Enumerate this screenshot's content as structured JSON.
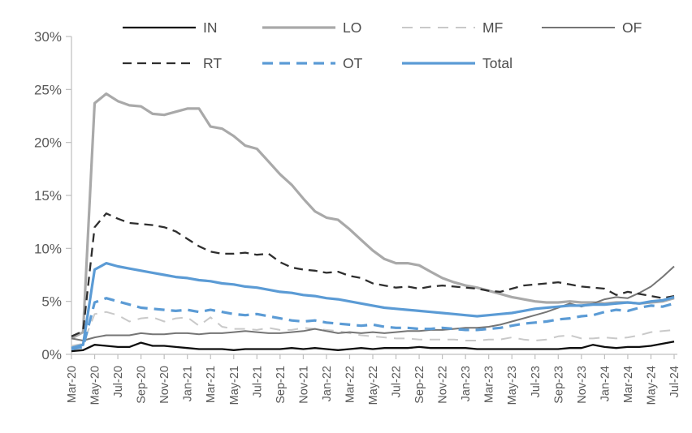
{
  "chart_data": {
    "type": "line",
    "title": "",
    "xlabel": "",
    "ylabel": "",
    "y_axis": {
      "min": 0,
      "max": 30,
      "step": 5,
      "tick_labels": [
        "0%",
        "5%",
        "10%",
        "15%",
        "20%",
        "25%",
        "30%"
      ],
      "format": "percent"
    },
    "x_axis": {
      "tick_every_months": 2,
      "categories": [
        "Mar-20",
        "Apr-20",
        "May-20",
        "Jun-20",
        "Jul-20",
        "Aug-20",
        "Sep-20",
        "Oct-20",
        "Nov-20",
        "Dec-20",
        "Jan-21",
        "Feb-21",
        "Mar-21",
        "Apr-21",
        "May-21",
        "Jun-21",
        "Jul-21",
        "Aug-21",
        "Sep-21",
        "Oct-21",
        "Nov-21",
        "Dec-21",
        "Jan-22",
        "Feb-22",
        "Mar-22",
        "Apr-22",
        "May-22",
        "Jun-22",
        "Jul-22",
        "Aug-22",
        "Sep-22",
        "Oct-22",
        "Nov-22",
        "Dec-22",
        "Jan-23",
        "Feb-23",
        "Mar-23",
        "Apr-23",
        "May-23",
        "Jun-23",
        "Jul-23",
        "Aug-23",
        "Sep-23",
        "Oct-23",
        "Nov-23",
        "Dec-23",
        "Jan-24",
        "Feb-24",
        "Mar-24",
        "Apr-24",
        "May-24",
        "Jun-24",
        "Jul-24"
      ]
    },
    "legend": {
      "position": "top",
      "rows": [
        [
          "IN",
          "LO",
          "MF",
          "OF"
        ],
        [
          "RT",
          "OT",
          "Total"
        ]
      ]
    },
    "grid": false,
    "axis_color": "#bfbfbf",
    "series": [
      {
        "name": "IN",
        "color": "#0d0d0d",
        "dash": "",
        "width": 2.3,
        "values": [
          0.3,
          0.4,
          0.9,
          0.8,
          0.7,
          0.7,
          1.1,
          0.8,
          0.8,
          0.7,
          0.6,
          0.5,
          0.5,
          0.5,
          0.4,
          0.5,
          0.5,
          0.5,
          0.5,
          0.6,
          0.5,
          0.6,
          0.5,
          0.4,
          0.5,
          0.6,
          0.5,
          0.6,
          0.6,
          0.6,
          0.7,
          0.6,
          0.6,
          0.6,
          0.6,
          0.5,
          0.5,
          0.5,
          0.5,
          0.5,
          0.5,
          0.5,
          0.5,
          0.6,
          0.6,
          0.9,
          0.7,
          0.6,
          0.7,
          0.7,
          0.8,
          1.0,
          1.2
        ]
      },
      {
        "name": "LO",
        "color": "#a9a9a9",
        "dash": "",
        "width": 3.2,
        "values": [
          1.5,
          2.1,
          23.7,
          24.6,
          23.9,
          23.5,
          23.4,
          22.7,
          22.6,
          22.9,
          23.2,
          23.2,
          21.5,
          21.3,
          20.6,
          19.7,
          19.4,
          18.2,
          17.0,
          16.0,
          14.7,
          13.5,
          12.9,
          12.7,
          11.8,
          10.8,
          9.8,
          9.0,
          8.6,
          8.6,
          8.4,
          7.8,
          7.2,
          6.8,
          6.5,
          6.3,
          6.0,
          5.7,
          5.4,
          5.2,
          5.0,
          4.9,
          4.9,
          5.0,
          4.9,
          4.9,
          4.8,
          4.9,
          4.9,
          4.8,
          4.9,
          5.0,
          5.3
        ]
      },
      {
        "name": "MF",
        "color": "#c9c9c9",
        "dash": "13 9",
        "width": 2,
        "values": [
          0.8,
          1.0,
          3.8,
          4.0,
          3.7,
          3.1,
          3.4,
          3.5,
          3.1,
          3.4,
          3.5,
          2.7,
          3.5,
          2.6,
          2.4,
          2.4,
          2.3,
          2.5,
          2.3,
          2.3,
          2.5,
          2.4,
          2.3,
          2.2,
          2.0,
          1.8,
          1.7,
          1.6,
          1.5,
          1.5,
          1.4,
          1.4,
          1.4,
          1.4,
          1.3,
          1.3,
          1.4,
          1.4,
          1.6,
          1.4,
          1.3,
          1.4,
          1.7,
          1.8,
          1.5,
          1.5,
          1.6,
          1.5,
          1.6,
          1.8,
          2.1,
          2.2,
          2.3
        ]
      },
      {
        "name": "OF",
        "color": "#757575",
        "dash": "",
        "width": 2,
        "values": [
          1.5,
          1.3,
          1.6,
          1.8,
          1.8,
          1.8,
          2.0,
          1.9,
          1.9,
          2.0,
          2.0,
          1.9,
          2.0,
          2.0,
          2.1,
          2.2,
          2.1,
          2.0,
          2.0,
          2.1,
          2.2,
          2.4,
          2.2,
          2.0,
          2.1,
          2.0,
          2.1,
          2.0,
          2.1,
          2.2,
          2.2,
          2.3,
          2.3,
          2.4,
          2.5,
          2.5,
          2.6,
          2.8,
          3.1,
          3.4,
          3.7,
          4.0,
          4.4,
          4.8,
          4.5,
          4.8,
          5.2,
          5.4,
          5.3,
          5.8,
          6.4,
          7.3,
          8.3
        ]
      },
      {
        "name": "RT",
        "color": "#2e2e2e",
        "dash": "11 7",
        "width": 2.3,
        "values": [
          1.7,
          2.2,
          12.0,
          13.3,
          12.8,
          12.4,
          12.3,
          12.2,
          12.0,
          11.6,
          10.9,
          10.2,
          9.7,
          9.5,
          9.5,
          9.6,
          9.4,
          9.5,
          8.7,
          8.2,
          8.0,
          7.9,
          7.7,
          7.8,
          7.4,
          7.2,
          6.7,
          6.5,
          6.3,
          6.4,
          6.2,
          6.4,
          6.5,
          6.4,
          6.3,
          6.2,
          6.0,
          5.9,
          6.2,
          6.5,
          6.6,
          6.7,
          6.8,
          6.6,
          6.4,
          6.3,
          6.2,
          5.6,
          5.9,
          5.7,
          5.5,
          5.3,
          5.5
        ]
      },
      {
        "name": "OT",
        "color": "#5b9bd5",
        "dash": "13 8",
        "width": 3.2,
        "values": [
          0.5,
          0.7,
          4.9,
          5.3,
          5.0,
          4.7,
          4.4,
          4.3,
          4.2,
          4.1,
          4.2,
          4.0,
          4.2,
          4.0,
          3.8,
          3.7,
          3.8,
          3.6,
          3.4,
          3.2,
          3.1,
          3.2,
          3.0,
          2.9,
          2.8,
          2.7,
          2.8,
          2.6,
          2.5,
          2.5,
          2.4,
          2.4,
          2.5,
          2.4,
          2.3,
          2.3,
          2.4,
          2.5,
          2.7,
          2.9,
          3.0,
          3.1,
          3.3,
          3.4,
          3.6,
          3.7,
          4.0,
          4.2,
          4.1,
          4.4,
          4.6,
          4.5,
          4.8
        ]
      },
      {
        "name": "Total",
        "color": "#5b9bd5",
        "dash": "",
        "width": 3.2,
        "values": [
          0.6,
          0.9,
          8.0,
          8.6,
          8.3,
          8.1,
          7.9,
          7.7,
          7.5,
          7.3,
          7.2,
          7.0,
          6.9,
          6.7,
          6.6,
          6.4,
          6.3,
          6.1,
          5.9,
          5.8,
          5.6,
          5.5,
          5.3,
          5.2,
          5.0,
          4.8,
          4.6,
          4.4,
          4.3,
          4.2,
          4.1,
          4.0,
          3.9,
          3.8,
          3.7,
          3.6,
          3.7,
          3.8,
          3.9,
          4.1,
          4.3,
          4.4,
          4.5,
          4.6,
          4.6,
          4.7,
          4.7,
          4.8,
          4.9,
          4.8,
          5.0,
          5.1,
          5.4
        ]
      }
    ]
  }
}
